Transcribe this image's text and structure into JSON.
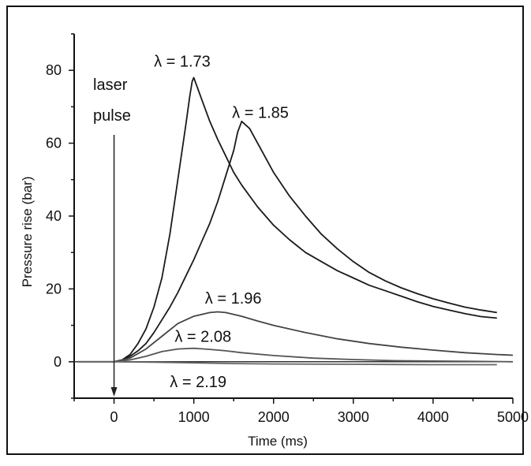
{
  "chart_data": {
    "type": "line",
    "xlabel": "Time (ms)",
    "ylabel": "Pressure rise (bar)",
    "xlim": [
      -500,
      5000
    ],
    "ylim": [
      -10,
      90
    ],
    "x_ticks": [
      0,
      1000,
      2000,
      3000,
      4000,
      5000
    ],
    "y_ticks": [
      0,
      20,
      40,
      60,
      80
    ],
    "grid": false,
    "annotations": {
      "laser_line1": "laser",
      "laser_line2": "pulse",
      "laser_time": 0
    },
    "series": [
      {
        "name": "λ = 1.73",
        "color": "#1a1a1a",
        "x": [
          -450,
          0,
          100,
          200,
          300,
          400,
          500,
          600,
          700,
          800,
          900,
          950,
          980,
          1000,
          1100,
          1200,
          1300,
          1400,
          1500,
          1600,
          1800,
          2000,
          2200,
          2400,
          2600,
          2800,
          3000,
          3200,
          3400,
          3600,
          3800,
          4000,
          4200,
          4400,
          4600,
          4800
        ],
        "y": [
          0,
          0,
          0.5,
          2,
          5,
          9,
          15,
          23,
          35,
          50,
          65,
          73,
          77,
          78,
          72,
          66,
          61,
          56.5,
          52,
          48.5,
          42.5,
          37.5,
          33.5,
          30,
          27.5,
          25,
          23,
          21,
          19.5,
          18,
          16.5,
          15.2,
          14.2,
          13.2,
          12.4,
          12
        ]
      },
      {
        "name": "λ = 1.85",
        "color": "#1a1a1a",
        "x": [
          0,
          100,
          200,
          300,
          400,
          500,
          600,
          700,
          800,
          900,
          1000,
          1100,
          1200,
          1300,
          1400,
          1500,
          1550,
          1600,
          1700,
          1800,
          2000,
          2200,
          2400,
          2600,
          2800,
          3000,
          3200,
          3400,
          3600,
          3800,
          4000,
          4200,
          4400,
          4600,
          4800
        ],
        "y": [
          0,
          0.5,
          1.5,
          3,
          5,
          8,
          11.5,
          15,
          19,
          23.5,
          28,
          33,
          38,
          44,
          51,
          58,
          63,
          66,
          64,
          60,
          52,
          45.5,
          40,
          35,
          31,
          27.5,
          24.5,
          22.2,
          20.3,
          18.7,
          17.3,
          16.1,
          15,
          14.2,
          13.5
        ]
      },
      {
        "name": "λ = 1.96",
        "color": "#444444",
        "x": [
          0,
          200,
          400,
          600,
          800,
          1000,
          1200,
          1300,
          1400,
          1600,
          1800,
          2000,
          2400,
          2800,
          3200,
          3600,
          4000,
          4400,
          4800,
          5000
        ],
        "y": [
          0,
          1,
          3.5,
          7,
          10.5,
          12.5,
          13.5,
          13.7,
          13.5,
          12.5,
          11.2,
          10,
          8,
          6.3,
          5,
          4,
          3.2,
          2.5,
          2,
          1.8
        ]
      },
      {
        "name": "λ = 2.08",
        "color": "#555555",
        "x": [
          0,
          200,
          400,
          600,
          800,
          1000,
          1200,
          1400,
          1600,
          2000,
          2500,
          3000,
          3500,
          4000,
          4500,
          5000
        ],
        "y": [
          0,
          0.5,
          1.5,
          2.8,
          3.5,
          3.7,
          3.4,
          3,
          2.5,
          1.7,
          1,
          0.6,
          0.3,
          0.2,
          0.1,
          0
        ]
      },
      {
        "name": "λ = 2.19",
        "color": "#666666",
        "x": [
          -450,
          0,
          500,
          1000,
          1500,
          2000,
          3000,
          4000,
          4800
        ],
        "y": [
          0,
          0,
          -0.1,
          -0.3,
          -0.5,
          -0.6,
          -0.7,
          -0.8,
          -0.8
        ]
      }
    ],
    "labels": [
      {
        "text": "λ = 1.73",
        "x": 500,
        "y": 81
      },
      {
        "text": "λ = 1.85",
        "x": 1480,
        "y": 67
      },
      {
        "text": "λ = 1.96",
        "x": 1140,
        "y": 16
      },
      {
        "text": "λ = 2.08",
        "x": 760,
        "y": 5.5
      },
      {
        "text": "λ = 2.19",
        "x": 700,
        "y": -7
      }
    ]
  }
}
